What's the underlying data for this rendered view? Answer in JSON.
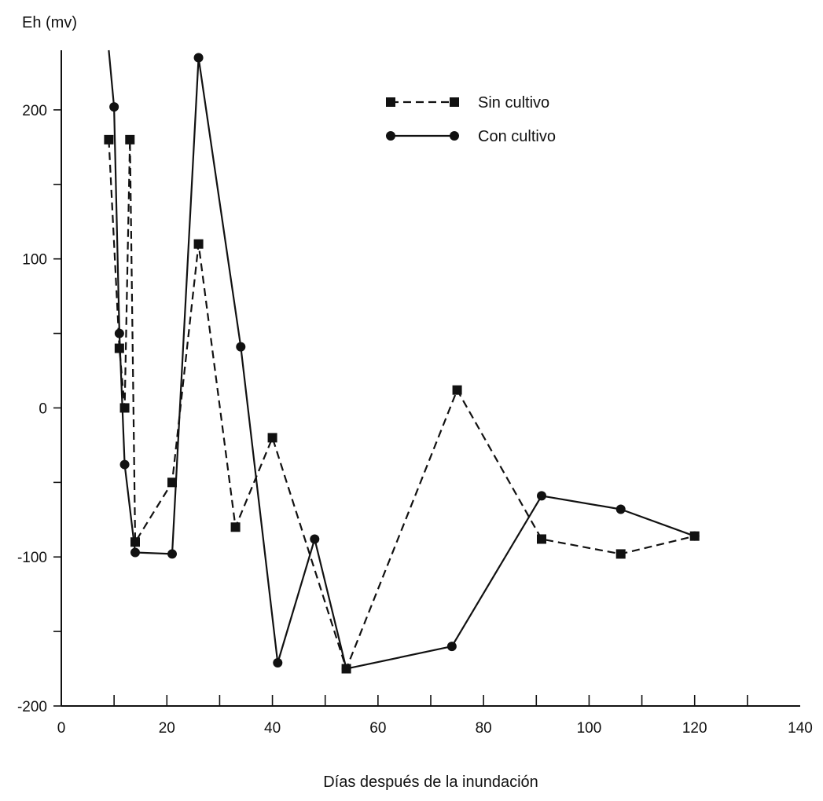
{
  "chart_data": {
    "type": "line",
    "xlabel": "Días después de la inundación",
    "ylabel": "Eh (mv)",
    "xlim": [
      0,
      140
    ],
    "ylim": [
      -200,
      240
    ],
    "x_ticks": [
      0,
      20,
      40,
      60,
      80,
      100,
      120,
      140
    ],
    "y_ticks": [
      -200,
      -100,
      0,
      100,
      200
    ],
    "grid": false,
    "legend_position": "top-right",
    "series": [
      {
        "name": "Sin cultivo",
        "style": "dashed",
        "marker": "square",
        "x": [
          9,
          11,
          12,
          13,
          14,
          21,
          26,
          33,
          40,
          54,
          75,
          91,
          106,
          120
        ],
        "y": [
          180,
          40,
          0,
          180,
          -90,
          -50,
          110,
          -80,
          -20,
          -175,
          12,
          -88,
          -98,
          -86
        ]
      },
      {
        "name": "Con cultivo",
        "style": "solid",
        "marker": "circle",
        "x": [
          9,
          10,
          11,
          12,
          14,
          21,
          26,
          34,
          41,
          48,
          54,
          74,
          91,
          106,
          120
        ],
        "y": [
          240,
          202,
          50,
          -38,
          -97,
          -98,
          235,
          41,
          -171,
          -88,
          -175,
          -160,
          -59,
          -68,
          -86
        ]
      }
    ]
  }
}
